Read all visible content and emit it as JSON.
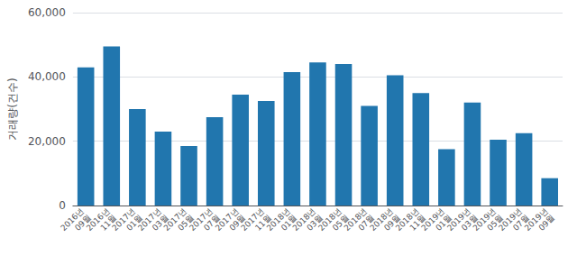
{
  "chart_data": {
    "type": "bar",
    "categories": [
      "2016년\n09월",
      "2016년\n11월",
      "2017년\n01월",
      "2017년\n03월",
      "2017년\n05월",
      "2017년\n07월",
      "2017년\n09월",
      "2017년\n11월",
      "2018년\n01월",
      "2018년\n03월",
      "2018년\n05월",
      "2018년\n07월",
      "2018년\n09월",
      "2018년\n11월",
      "2019년\n01월",
      "2019년\n03월",
      "2019년\n05월",
      "2019년\n07월",
      "2019년\n09월"
    ],
    "values": [
      43000,
      49500,
      30000,
      23000,
      18500,
      27500,
      34500,
      32500,
      41500,
      44500,
      44000,
      31000,
      40500,
      35000,
      17500,
      32000,
      20500,
      22500,
      8500
    ],
    "color": "#2176ae",
    "ylabel": "거래량(건수)",
    "ylim": [
      0,
      60000
    ],
    "yticks": [
      0,
      {
        "value": 20000,
        "label": "20,000"
      },
      {
        "value": 40000,
        "label": "40,000"
      },
      {
        "value": 60000,
        "label": "60,000"
      }
    ],
    "grid": true
  }
}
